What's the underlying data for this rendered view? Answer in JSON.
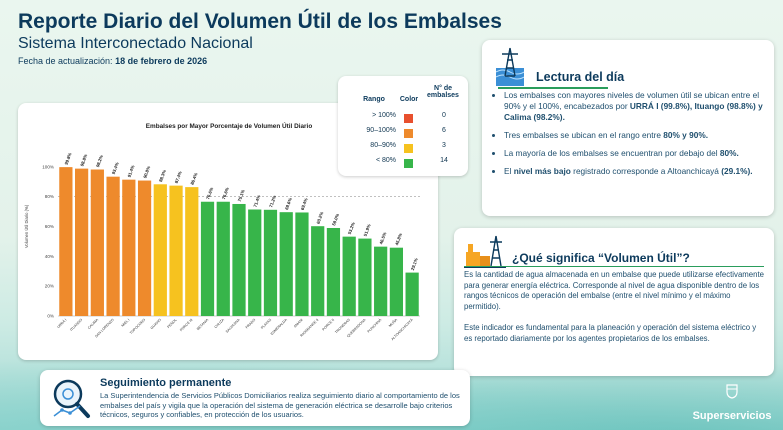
{
  "header": {
    "title": "Reporte Diario del Volumen Útil de los Embalses",
    "subtitle": "Sistema Interconectado Nacional",
    "updated_label": "Fecha de actualización:",
    "updated_date": "18 de febrero de 2026"
  },
  "legend": {
    "col_range": "Rango",
    "col_color": "Color",
    "col_count": "N° de embalses",
    "rows": [
      {
        "range": "> 100%",
        "color": "#e8502e",
        "count": "0"
      },
      {
        "range": "90–100%",
        "color": "#ee8a2c",
        "count": "6"
      },
      {
        "range": "80–90%",
        "color": "#f6c21f",
        "count": "3"
      },
      {
        "range": "< 80%",
        "color": "#37b54a",
        "count": "14"
      }
    ]
  },
  "chart_data": {
    "type": "bar",
    "title": "Embalses por Mayor Porcentaje de Volumen Útil Diario",
    "ylabel": "Volumen Útil Diario (%)",
    "xlabel": "",
    "ylim": [
      0,
      120
    ],
    "yticks": [
      "0%",
      "20%",
      "40%",
      "60%",
      "80%",
      "100%"
    ],
    "reference_line": 80,
    "categories": [
      "URRÁ I",
      "ITUANGO",
      "CALIMA",
      "SAN LORENZO",
      "MIEL I",
      "TOPOCORO",
      "GUAVIO",
      "PEÑOL",
      "PORCE III",
      "BETANIA",
      "CHUZA",
      "SALVAJINA",
      "PRADO",
      "PLAYAS",
      "ESMERALDA",
      "AMANI",
      "RIOGRANDE II",
      "PORCE II",
      "TRONERAS",
      "QUEBRADONA",
      "PUNCHINÁ",
      "MUÑA",
      "ALTOANCHICAYÁ"
    ],
    "values": [
      99.8,
      98.8,
      98.2,
      93.4,
      91.4,
      90.8,
      88.3,
      87.4,
      86.4,
      76.6,
      76.6,
      75.1,
      71.4,
      71.2,
      69.6,
      69.4,
      60.2,
      59.0,
      53.2,
      51.9,
      46.5,
      45.8,
      29.1
    ],
    "labels": [
      "99.8%",
      "98.8%",
      "98.2%",
      "93.4%",
      "91.4%",
      "90.8%",
      "88.3%",
      "87.4%",
      "86.4%",
      "76.6%",
      "76.6%",
      "75.1%",
      "71.4%",
      "71.2%",
      "69.6%",
      "69.4%",
      "60.2%",
      "59.0%",
      "53.2%",
      "51.9%",
      "46.5%",
      "45.8%",
      "29.1%"
    ]
  },
  "lectura": {
    "title": "Lectura del día",
    "items": [
      "Los embalses con mayores niveles de volumen útil se ubican entre el 90% y el 100%, encabezados por URRÁ I (99.8%), Ituango (98.8%) y Calima (98.2%).",
      "Tres embalses se ubican en el rango entre 80% y 90%.",
      "La mayoría de los embalses se encuentran por debajo del 80%.",
      "El nivel más bajo registrado corresponde a Altoanchicayá (29.1%)."
    ]
  },
  "significado": {
    "title": "¿Qué significa “Volumen Útil”?",
    "p1": "Es la cantidad de agua almacenada en un embalse que puede utilizarse efectivamente para generar energía eléctrica. Corresponde al nivel de agua disponible dentro de los rangos técnicos de operación del embalse (entre el nivel mínimo y el máximo permitido).",
    "p2": "Este indicador es fundamental para la planeación y operación del sistema eléctrico y es reportado diariamente por los agentes propietarios de los embalses."
  },
  "seguimiento": {
    "title": "Seguimiento permanente",
    "text": "La Superintendencia de Servicios Públicos Domiciliarios realiza seguimiento diario al comportamiento de los embalses del país y vigila que la operación del sistema de generación eléctrica se desarrolle bajo criterios técnicos, seguros y confiables, en protección de los usuarios."
  },
  "brand": {
    "name": "Superservicios"
  },
  "colors": {
    "orange": "#ee8a2c",
    "yellow": "#f6c21f",
    "green": "#37b54a",
    "navy": "#0c3a5c"
  }
}
